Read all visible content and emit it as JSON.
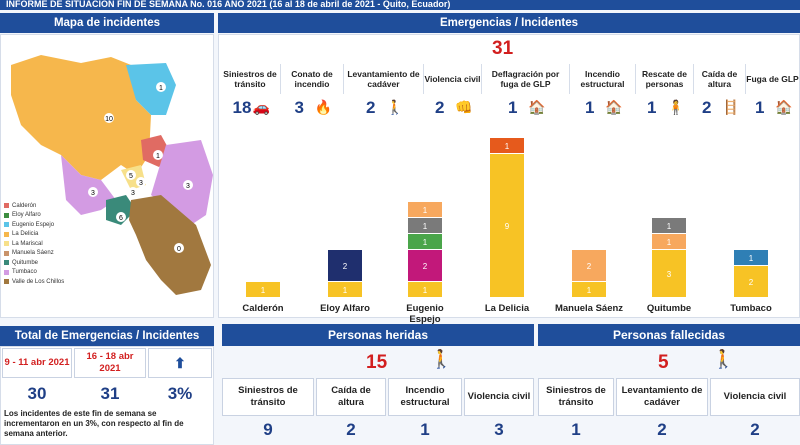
{
  "header": {
    "title": "INFORME DE SITUACIÓN FIN DE SEMANA No. 016 AÑO 2021 (16 al 18 de abril de 2021 - Quito, Ecuador)"
  },
  "map": {
    "title": "Mapa de incidentes",
    "legend": [
      {
        "label": "Calderón",
        "color": "#e06b63"
      },
      {
        "label": "Eloy Alfaro",
        "color": "#3c8d40"
      },
      {
        "label": "Eugenio Espejo",
        "color": "#5bc4e8"
      },
      {
        "label": "La Delicia",
        "color": "#f6b74c"
      },
      {
        "label": "La Mariscal",
        "color": "#f7e08a"
      },
      {
        "label": "Manuela Sáenz",
        "color": "#c9936a"
      },
      {
        "label": "Quitumbe",
        "color": "#3a8a7a"
      },
      {
        "label": "Tumbaco",
        "color": "#d39be3"
      },
      {
        "label": "Valle de Los Chillos",
        "color": "#a1783f"
      }
    ],
    "labels": [
      "1",
      "10",
      "1",
      "3",
      "5",
      "3",
      "3",
      "3",
      "6",
      "0"
    ]
  },
  "emergencies": {
    "title": "Emergencias / Incidentes",
    "total": "31",
    "categories": [
      {
        "label": "Siniestros de tránsito",
        "value": "18"
      },
      {
        "label": "Conato de incendio",
        "value": "3"
      },
      {
        "label": "Levantamiento de cadáver",
        "value": "2"
      },
      {
        "label": "Violencia civil",
        "value": "2"
      },
      {
        "label": "Deflagración por fuga de GLP",
        "value": "1"
      },
      {
        "label": "Incendio estructural",
        "value": "1"
      },
      {
        "label": "Rescate de personas",
        "value": "1"
      },
      {
        "label": "Caída de altura",
        "value": "2"
      },
      {
        "label": "Fuga de GLP",
        "value": "1"
      }
    ]
  },
  "chart_data": {
    "type": "bar",
    "categories": [
      "Calderón",
      "Eloy Alfaro",
      "Eugenio Espejo",
      "La Delicia",
      "Manuela Sáenz",
      "Quitumbe",
      "Tumbaco"
    ],
    "stacks": [
      [
        {
          "value": 1,
          "color": "#f7c325"
        }
      ],
      [
        {
          "value": 1,
          "color": "#f7c325"
        },
        {
          "value": 2,
          "color": "#1f2f6e"
        }
      ],
      [
        {
          "value": 1,
          "color": "#f7c325"
        },
        {
          "value": 2,
          "color": "#c2187a"
        },
        {
          "value": 1,
          "color": "#4aa54a"
        },
        {
          "value": 1,
          "color": "#7a7a7a"
        },
        {
          "value": 1,
          "color": "#f7a85e"
        }
      ],
      [
        {
          "value": 9,
          "color": "#f7c325"
        },
        {
          "value": 1,
          "color": "#e65a1c"
        }
      ],
      [
        {
          "value": 1,
          "color": "#f7c325"
        },
        {
          "value": 2,
          "color": "#f7a85e"
        }
      ],
      [
        {
          "value": 3,
          "color": "#f7c325"
        },
        {
          "value": 1,
          "color": "#f7a85e"
        },
        {
          "value": 1,
          "color": "#7a7a7a"
        }
      ],
      [
        {
          "value": 2,
          "color": "#f7c325"
        },
        {
          "value": 1,
          "color": "#2f7fb5"
        }
      ]
    ]
  },
  "totals": {
    "title": "Total de Emergencias / Incidentes",
    "period1": "9 - 11 abr 2021",
    "period2": "16 - 18 abr 2021",
    "value1": "30",
    "value2": "31",
    "change": "3%",
    "note": "Los incidentes de este fin de semana se incrementaron en un 3%, con respecto al fin de semana anterior."
  },
  "injured": {
    "title": "Personas heridas",
    "total": "15",
    "cells": [
      {
        "label": "Siniestros de tránsito",
        "value": "9"
      },
      {
        "label": "Caída de altura",
        "value": "2"
      },
      {
        "label": "Incendio estructural",
        "value": "1"
      },
      {
        "label": "Violencia civil",
        "value": "3"
      }
    ]
  },
  "deceased": {
    "title": "Personas fallecidas",
    "total": "5",
    "cells": [
      {
        "label": "Siniestros de tránsito",
        "value": "1"
      },
      {
        "label": "Levantamiento de cadáver",
        "value": "2"
      },
      {
        "label": "Violencia civil",
        "value": "2"
      }
    ]
  }
}
